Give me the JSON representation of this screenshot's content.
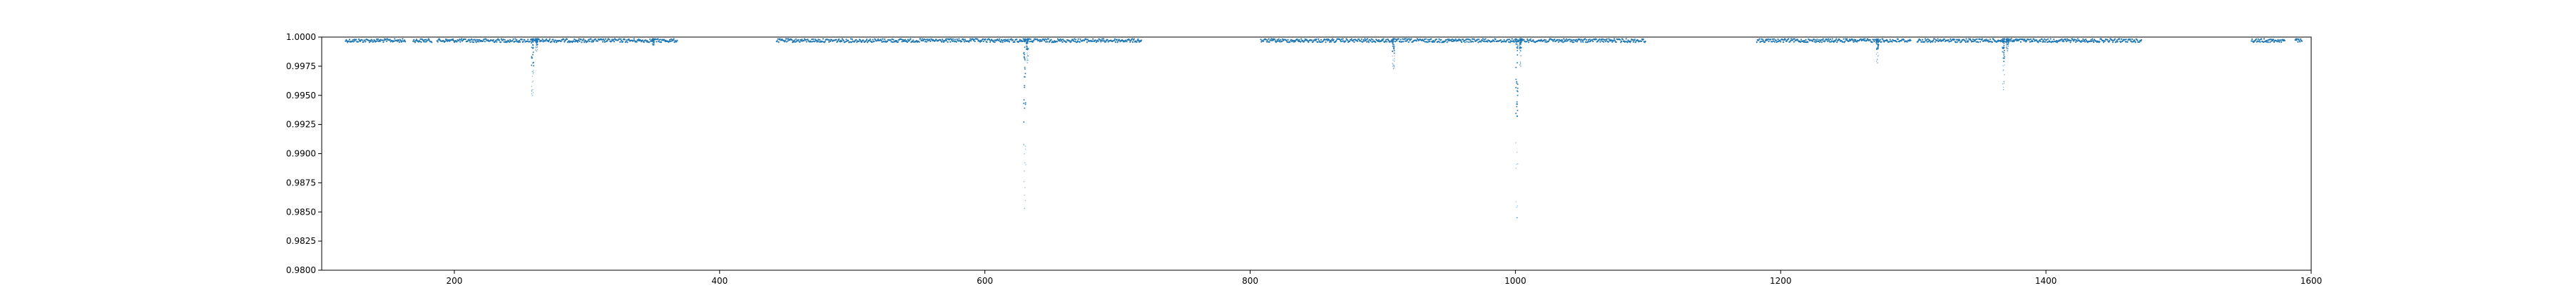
{
  "chart_data": {
    "type": "scatter",
    "title": "",
    "xlabel": "",
    "ylabel": "",
    "xlim": [
      100,
      1600
    ],
    "ylim": [
      0.98,
      1.0
    ],
    "grid": false,
    "legend": "none",
    "x_ticks": [
      200,
      400,
      600,
      800,
      1000,
      1200,
      1400,
      1600
    ],
    "x_tick_labels": [
      "200",
      "400",
      "600",
      "800",
      "1000",
      "1200",
      "1400",
      "1600"
    ],
    "y_ticks": [
      0.98,
      0.9825,
      0.985,
      0.9875,
      0.99,
      0.9925,
      0.995,
      0.9975,
      1.0
    ],
    "y_tick_labels": [
      "0.9800",
      "0.9825",
      "0.9850",
      "0.9875",
      "0.9900",
      "0.9925",
      "0.9950",
      "0.9975",
      "1.0000"
    ],
    "series": [
      {
        "color": "#1f77b4",
        "segments": [
          [
            118,
            163
          ],
          [
            169,
            183
          ],
          [
            187,
            368
          ],
          [
            443,
            718
          ],
          [
            808,
            1098
          ],
          [
            1182,
            1298
          ],
          [
            1303,
            1472
          ],
          [
            1555,
            1580
          ],
          [
            1588,
            1593
          ]
        ],
        "baseline": 0.99985,
        "scatter": 0.0003,
        "dips": [
          {
            "x": 259,
            "min": 0.995
          },
          {
            "x": 262,
            "min": 0.9988
          },
          {
            "x": 350,
            "min": 0.9993
          },
          {
            "x": 630,
            "min": 0.9853
          },
          {
            "x": 632,
            "min": 0.9978
          },
          {
            "x": 908,
            "min": 0.9973
          },
          {
            "x": 1001,
            "min": 0.9845
          },
          {
            "x": 1004,
            "min": 0.9975
          },
          {
            "x": 1273,
            "min": 0.9978
          },
          {
            "x": 1368,
            "min": 0.9955
          },
          {
            "x": 1371,
            "min": 0.9988
          }
        ]
      }
    ]
  }
}
